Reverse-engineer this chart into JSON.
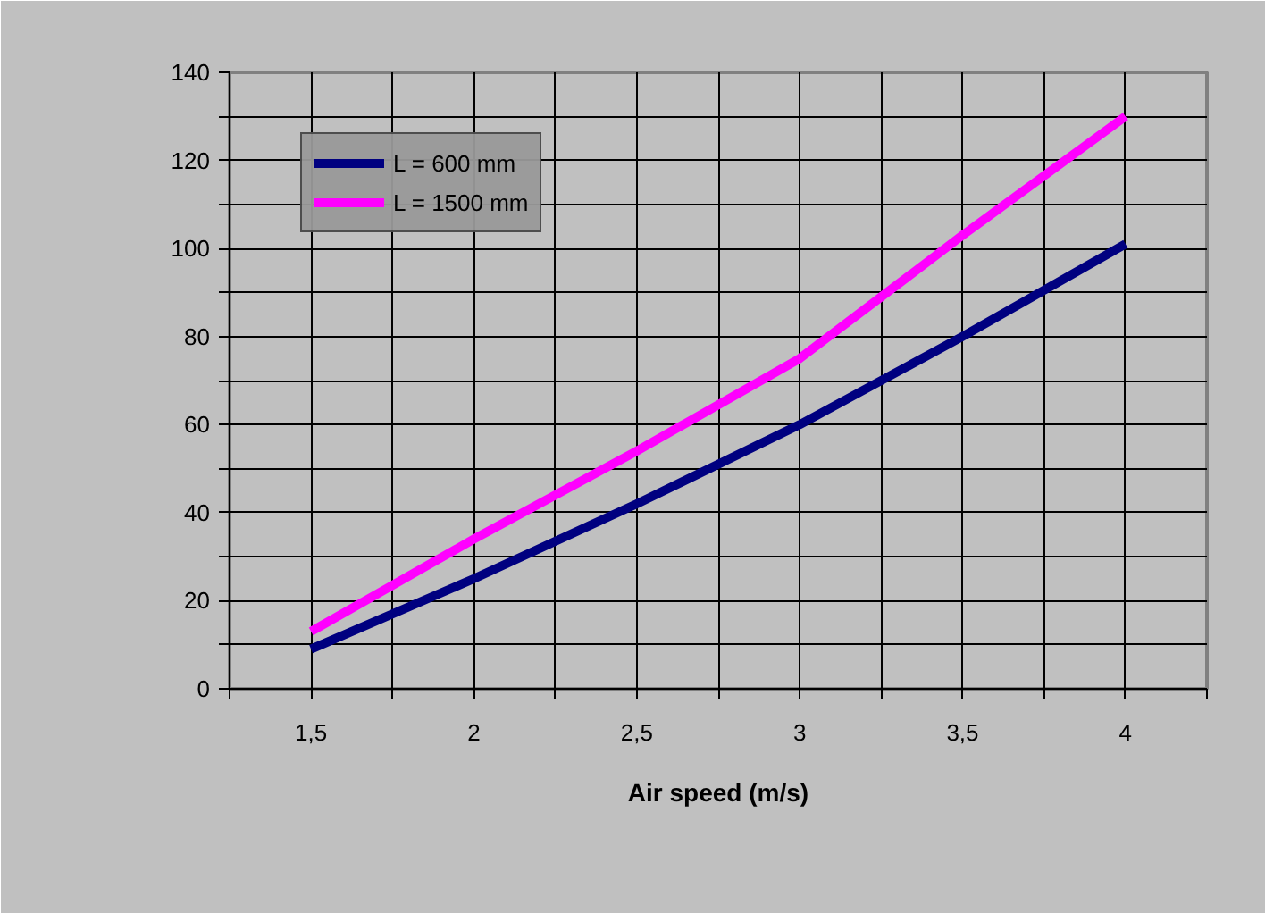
{
  "chart_data": {
    "type": "line",
    "xlabel": "Air speed (m/s)",
    "categories": [
      "1,5",
      "2",
      "2,5",
      "3",
      "3,5",
      "4"
    ],
    "series": [
      {
        "name": "L = 600 mm",
        "color": "#000080",
        "values": [
          9,
          25,
          42,
          60,
          80,
          101
        ]
      },
      {
        "name": "L = 1500 mm",
        "color": "#ff00ff",
        "values": [
          13,
          34,
          54,
          75,
          103,
          130
        ]
      }
    ],
    "ylim": [
      0,
      140
    ],
    "yticks": [
      0,
      {
        "value": 10,
        "label": null
      },
      20,
      {
        "value": 30,
        "label": null
      },
      40,
      {
        "value": 50,
        "label": null
      },
      60,
      {
        "value": 70,
        "label": null
      },
      80,
      {
        "value": 90,
        "label": null
      },
      100,
      {
        "value": 110,
        "label": null
      },
      120,
      {
        "value": 130,
        "label": null
      },
      140
    ],
    "grid": true,
    "legend": "top left",
    "marker": "none",
    "line_style": "solid"
  }
}
